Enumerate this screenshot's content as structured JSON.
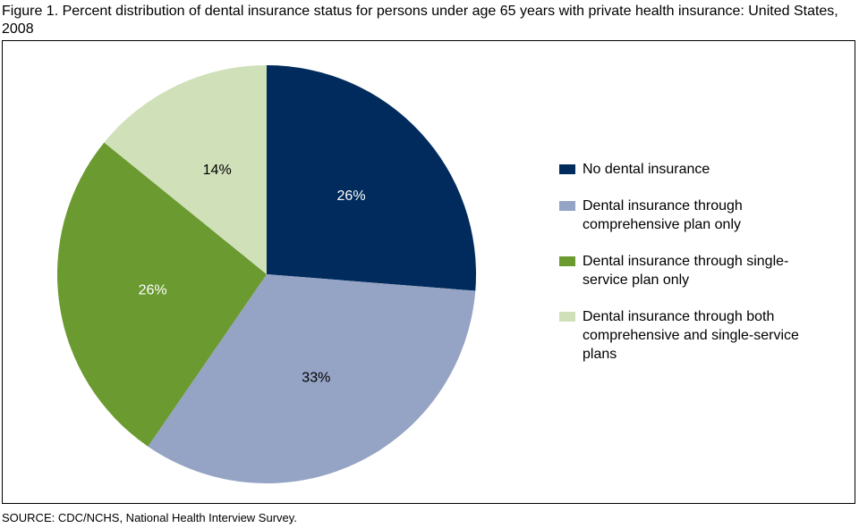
{
  "chart_data": {
    "type": "pie",
    "title": "Figure 1. Percent distribution of dental insurance status for persons under age 65 years with private health insurance: United States, 2008",
    "categories": [
      "No dental insurance",
      "Dental insurance through comprehensive plan only",
      "Dental insurance through single-service plan only",
      "Dental insurance through both comprehensive and single-service plans"
    ],
    "values": [
      26,
      33,
      26,
      14
    ],
    "value_labels": [
      "26%",
      "33%",
      "26%",
      "14%"
    ],
    "colors": [
      "#002b5c",
      "#95a3c4",
      "#6a9a30",
      "#d0e0b9"
    ],
    "label_colors": [
      "#ffffff",
      "#000000",
      "#ffffff",
      "#000000"
    ],
    "source": "SOURCE: CDC/NCHS, National Health Interview Survey."
  }
}
